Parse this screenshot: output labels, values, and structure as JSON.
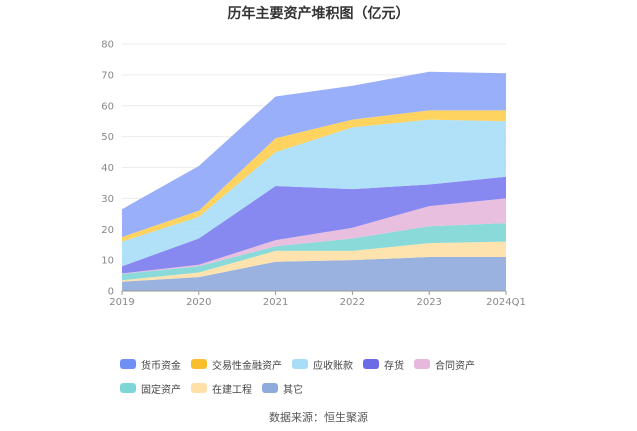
{
  "chart_data": {
    "type": "area",
    "title": "历年主要资产堆积图（亿元）",
    "source": "数据来源：恒生聚源",
    "categories": [
      "2019",
      "2020",
      "2021",
      "2022",
      "2023",
      "2024Q1"
    ],
    "y_ticks": [
      "0",
      "10",
      "20",
      "30",
      "40",
      "50",
      "60",
      "70",
      "80"
    ],
    "ylim": [
      0,
      80
    ],
    "stacked": true,
    "series": [
      {
        "name": "其它",
        "color": "#8FAADC",
        "values": [
          3.0,
          4.5,
          9.5,
          10.0,
          11.0,
          11.0
        ]
      },
      {
        "name": "在建工程",
        "color": "#FFE0A6",
        "values": [
          0.5,
          1.5,
          3.5,
          3.0,
          4.5,
          5.0
        ]
      },
      {
        "name": "固定资产",
        "color": "#7ED6D6",
        "values": [
          2.0,
          2.0,
          1.5,
          4.0,
          5.5,
          6.0
        ]
      },
      {
        "name": "合同资产",
        "color": "#E6B8DC",
        "values": [
          0.2,
          0.5,
          2.0,
          3.5,
          6.5,
          8.0
        ]
      },
      {
        "name": "存货",
        "color": "#7B7BF0",
        "values": [
          2.3,
          8.5,
          17.5,
          12.5,
          7.0,
          7.0
        ]
      },
      {
        "name": "应收账款",
        "color": "#A8DDF8",
        "values": [
          8.0,
          7.0,
          11.0,
          20.0,
          21.0,
          18.0
        ]
      },
      {
        "name": "交易性金融资产",
        "color": "#FFCE4F",
        "values": [
          1.5,
          2.0,
          4.5,
          2.5,
          3.0,
          3.5
        ]
      },
      {
        "name": "货币资金",
        "color": "#8FA6F8",
        "values": [
          9.0,
          14.5,
          13.5,
          11.0,
          12.5,
          12.0
        ]
      }
    ],
    "legend": [
      {
        "name": "货币资金",
        "color": "#6F8FF5"
      },
      {
        "name": "交易性金融资产",
        "color": "#F9BE2C"
      },
      {
        "name": "应收账款",
        "color": "#A8DDF8"
      },
      {
        "name": "存货",
        "color": "#6B6BE8"
      },
      {
        "name": "合同资产",
        "color": "#E6B8DC"
      },
      {
        "name": "固定资产",
        "color": "#7ED6D6"
      },
      {
        "name": "在建工程",
        "color": "#FFE0A6"
      },
      {
        "name": "其它",
        "color": "#8FAADC"
      }
    ]
  }
}
